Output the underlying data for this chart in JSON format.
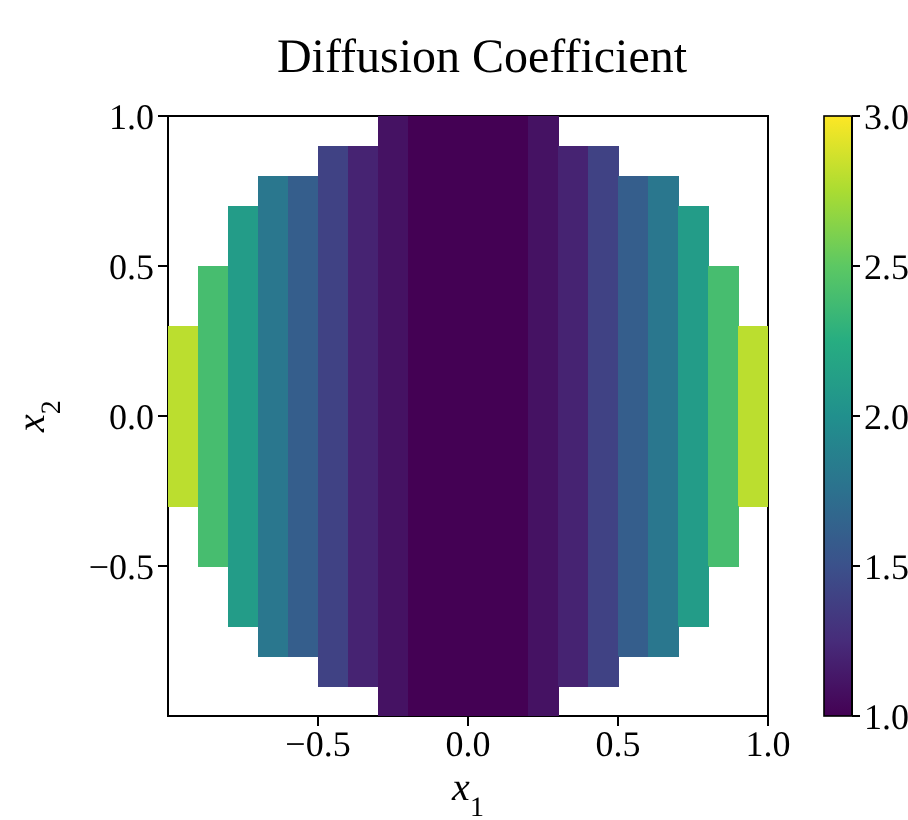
{
  "chart_data": {
    "type": "heatmap",
    "title": "Diffusion Coefficient",
    "xlabel": "x$_{1}$",
    "ylabel": "x$_{2}$",
    "xlim": [
      -1,
      1
    ],
    "ylim": [
      -1,
      1
    ],
    "xticks": [
      {
        "value": -0.5,
        "label": "−0.5"
      },
      {
        "value": 0,
        "label": "0.0"
      },
      {
        "value": 0.5,
        "label": "0.5"
      },
      {
        "value": 1,
        "label": "1.0"
      }
    ],
    "yticks": [
      {
        "value": -0.5,
        "label": "−0.5"
      },
      {
        "value": 0,
        "label": "0.0"
      },
      {
        "value": 0.5,
        "label": "0.5"
      },
      {
        "value": 1,
        "label": "1.0"
      }
    ],
    "clim": [
      1,
      3
    ],
    "cticks": [
      {
        "value": 1,
        "label": "1.0"
      },
      {
        "value": 1.5,
        "label": "1.5"
      },
      {
        "value": 2,
        "label": "2.0"
      },
      {
        "value": 2.5,
        "label": "2.5"
      },
      {
        "value": 3,
        "label": "3.0"
      }
    ],
    "cells": [
      [
        null,
        null,
        null,
        null,
        null,
        null,
        null,
        1.1,
        1.0,
        1.0,
        1.0,
        1.0,
        1.1,
        null,
        null,
        null,
        null,
        null,
        null,
        null
      ],
      [
        null,
        null,
        null,
        null,
        null,
        1.4,
        1.2,
        1.1,
        1.0,
        1.0,
        1.0,
        1.0,
        1.1,
        1.2,
        1.4,
        null,
        null,
        null,
        null,
        null
      ],
      [
        null,
        null,
        null,
        1.8,
        1.6,
        1.4,
        1.2,
        1.1,
        1.0,
        1.0,
        1.0,
        1.0,
        1.1,
        1.2,
        1.4,
        1.6,
        1.8,
        null,
        null,
        null
      ],
      [
        null,
        null,
        2.1,
        1.8,
        1.6,
        1.4,
        1.2,
        1.1,
        1.0,
        1.0,
        1.0,
        1.0,
        1.1,
        1.2,
        1.4,
        1.6,
        1.8,
        2.1,
        null,
        null
      ],
      [
        null,
        null,
        2.1,
        1.8,
        1.6,
        1.4,
        1.2,
        1.1,
        1.0,
        1.0,
        1.0,
        1.0,
        1.1,
        1.2,
        1.4,
        1.6,
        1.8,
        2.1,
        null,
        null
      ],
      [
        null,
        2.4,
        2.1,
        1.8,
        1.6,
        1.4,
        1.2,
        1.1,
        1.0,
        1.0,
        1.0,
        1.0,
        1.1,
        1.2,
        1.4,
        1.6,
        1.8,
        2.1,
        2.4,
        null
      ],
      [
        null,
        2.4,
        2.1,
        1.8,
        1.6,
        1.4,
        1.2,
        1.1,
        1.0,
        1.0,
        1.0,
        1.0,
        1.1,
        1.2,
        1.4,
        1.6,
        1.8,
        2.1,
        2.4,
        null
      ],
      [
        2.8,
        2.4,
        2.1,
        1.8,
        1.6,
        1.4,
        1.2,
        1.1,
        1.0,
        1.0,
        1.0,
        1.0,
        1.1,
        1.2,
        1.4,
        1.6,
        1.8,
        2.1,
        2.4,
        2.8
      ],
      [
        2.8,
        2.4,
        2.1,
        1.8,
        1.6,
        1.4,
        1.2,
        1.1,
        1.0,
        1.0,
        1.0,
        1.0,
        1.1,
        1.2,
        1.4,
        1.6,
        1.8,
        2.1,
        2.4,
        2.8
      ],
      [
        2.8,
        2.4,
        2.1,
        1.8,
        1.6,
        1.4,
        1.2,
        1.1,
        1.0,
        1.0,
        1.0,
        1.0,
        1.1,
        1.2,
        1.4,
        1.6,
        1.8,
        2.1,
        2.4,
        2.8
      ],
      [
        2.8,
        2.4,
        2.1,
        1.8,
        1.6,
        1.4,
        1.2,
        1.1,
        1.0,
        1.0,
        1.0,
        1.0,
        1.1,
        1.2,
        1.4,
        1.6,
        1.8,
        2.1,
        2.4,
        2.8
      ],
      [
        2.8,
        2.4,
        2.1,
        1.8,
        1.6,
        1.4,
        1.2,
        1.1,
        1.0,
        1.0,
        1.0,
        1.0,
        1.1,
        1.2,
        1.4,
        1.6,
        1.8,
        2.1,
        2.4,
        2.8
      ],
      [
        2.8,
        2.4,
        2.1,
        1.8,
        1.6,
        1.4,
        1.2,
        1.1,
        1.0,
        1.0,
        1.0,
        1.0,
        1.1,
        1.2,
        1.4,
        1.6,
        1.8,
        2.1,
        2.4,
        2.8
      ],
      [
        null,
        2.4,
        2.1,
        1.8,
        1.6,
        1.4,
        1.2,
        1.1,
        1.0,
        1.0,
        1.0,
        1.0,
        1.1,
        1.2,
        1.4,
        1.6,
        1.8,
        2.1,
        2.4,
        null
      ],
      [
        null,
        2.4,
        2.1,
        1.8,
        1.6,
        1.4,
        1.2,
        1.1,
        1.0,
        1.0,
        1.0,
        1.0,
        1.1,
        1.2,
        1.4,
        1.6,
        1.8,
        2.1,
        2.4,
        null
      ],
      [
        null,
        null,
        2.1,
        1.8,
        1.6,
        1.4,
        1.2,
        1.1,
        1.0,
        1.0,
        1.0,
        1.0,
        1.1,
        1.2,
        1.4,
        1.6,
        1.8,
        2.1,
        null,
        null
      ],
      [
        null,
        null,
        2.1,
        1.8,
        1.6,
        1.4,
        1.2,
        1.1,
        1.0,
        1.0,
        1.0,
        1.0,
        1.1,
        1.2,
        1.4,
        1.6,
        1.8,
        2.1,
        null,
        null
      ],
      [
        null,
        null,
        null,
        1.8,
        1.6,
        1.4,
        1.2,
        1.1,
        1.0,
        1.0,
        1.0,
        1.0,
        1.1,
        1.2,
        1.4,
        1.6,
        1.8,
        null,
        null,
        null
      ],
      [
        null,
        null,
        null,
        null,
        null,
        1.4,
        1.2,
        1.1,
        1.0,
        1.0,
        1.0,
        1.0,
        1.1,
        1.2,
        1.4,
        null,
        null,
        null,
        null,
        null
      ],
      [
        null,
        null,
        null,
        null,
        null,
        null,
        null,
        1.1,
        1.0,
        1.0,
        1.0,
        1.0,
        1.1,
        null,
        null,
        null,
        null,
        null,
        null,
        null
      ]
    ]
  }
}
